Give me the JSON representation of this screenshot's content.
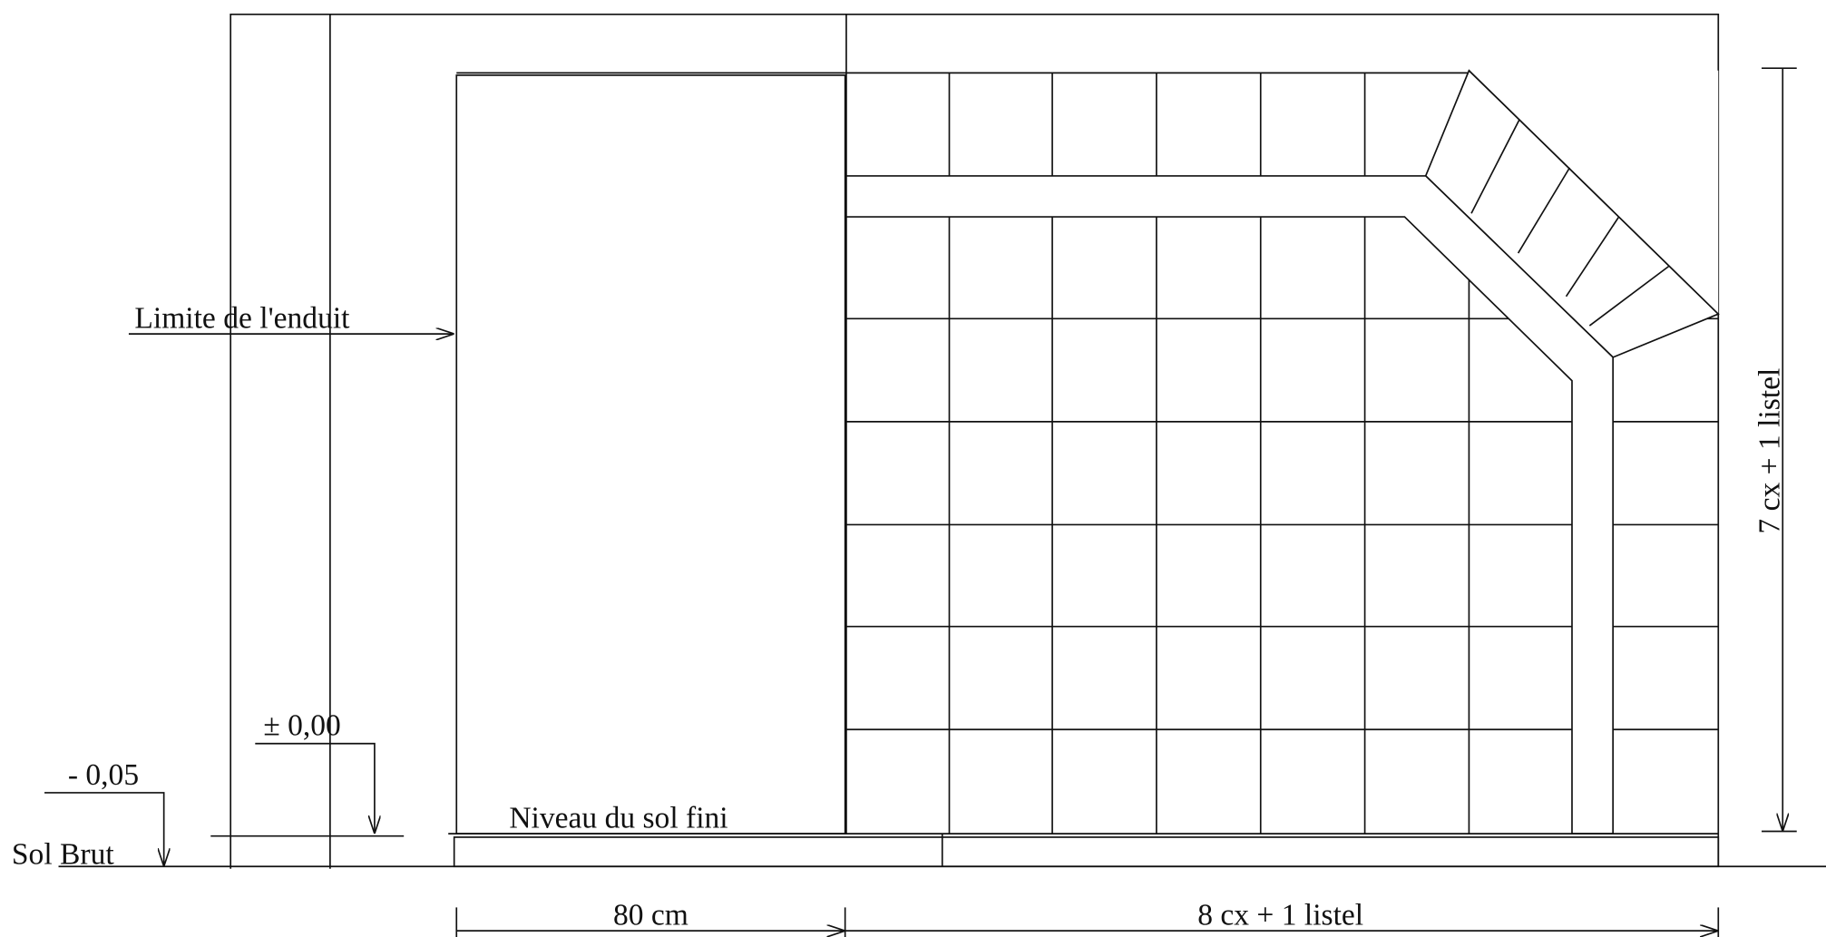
{
  "labels": {
    "plaster_limit": "Limite de l'enduit",
    "level_zero": "± 0,00",
    "level_minus": "- 0,05",
    "rough_floor": "Sol Brut",
    "finished_floor": "Niveau du sol fini",
    "width_left": "80 cm",
    "width_right": "8 cx + 1 listel",
    "height_right": "7 cx + 1 listel"
  }
}
